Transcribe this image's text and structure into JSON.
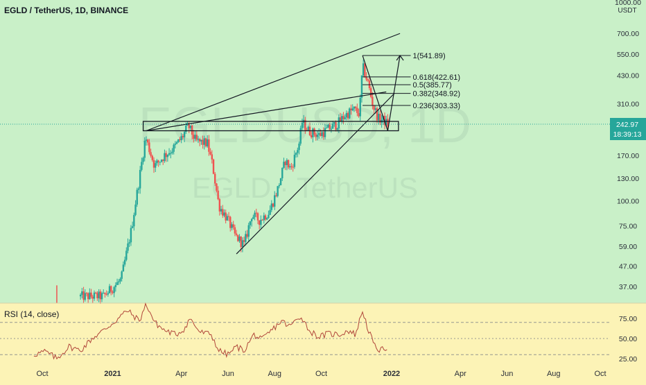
{
  "chart_data": {
    "type": "candlestick",
    "title": "EGLD / TetherUS, 1D, BINANCE",
    "watermark": {
      "symbol": "EGLDUSD, 1D",
      "pair": "EGLD · TetherUS"
    },
    "currency_label": "USDT",
    "price_axis": {
      "scale": "log",
      "range": [
        31,
        1000
      ],
      "ticks": [
        "1000.00",
        "700.00",
        "550.00",
        "430.00",
        "310.00",
        "240.00",
        "170.00",
        "130.00",
        "100.00",
        "75.00",
        "59.00",
        "47.00",
        "37.00"
      ],
      "tick_values": [
        1000,
        700,
        550,
        430,
        310,
        240,
        170,
        130,
        100,
        75,
        59,
        47,
        37
      ]
    },
    "last_price": {
      "value": 242.97,
      "label": "242.97",
      "countdown": "18:39:13",
      "color": "#26a69a"
    },
    "time_axis": {
      "labels": [
        "Oct",
        "2021",
        "Apr",
        "Jun",
        "Aug",
        "Oct",
        "2022",
        "Apr",
        "Jun",
        "Aug",
        "Oct"
      ],
      "positions": [
        "2020-10-01",
        "2021-01-01",
        "2021-04-01",
        "2021-06-01",
        "2021-08-01",
        "2021-10-01",
        "2022-01-01",
        "2022-04-01",
        "2022-06-01",
        "2022-08-01",
        "2022-10-01"
      ],
      "bold": [
        "2021",
        "2022"
      ]
    },
    "price_anchors": [
      [
        "2020-11-20",
        33
      ],
      [
        "2020-12-20",
        33
      ],
      [
        "2021-01-12",
        40
      ],
      [
        "2021-01-25",
        70
      ],
      [
        "2021-02-05",
        130
      ],
      [
        "2021-02-13",
        210
      ],
      [
        "2021-02-25",
        150
      ],
      [
        "2021-03-10",
        170
      ],
      [
        "2021-03-22",
        185
      ],
      [
        "2021-04-02",
        210
      ],
      [
        "2021-04-10",
        240
      ],
      [
        "2021-04-20",
        200
      ],
      [
        "2021-05-05",
        195
      ],
      [
        "2021-05-12",
        150
      ],
      [
        "2021-05-20",
        95
      ],
      [
        "2021-06-01",
        80
      ],
      [
        "2021-06-10",
        67
      ],
      [
        "2021-06-22",
        60
      ],
      [
        "2021-07-02",
        85
      ],
      [
        "2021-07-12",
        80
      ],
      [
        "2021-07-25",
        88
      ],
      [
        "2021-08-05",
        115
      ],
      [
        "2021-08-15",
        160
      ],
      [
        "2021-08-22",
        145
      ],
      [
        "2021-09-02",
        195
      ],
      [
        "2021-09-06",
        250
      ],
      [
        "2021-09-15",
        225
      ],
      [
        "2021-09-28",
        215
      ],
      [
        "2021-10-10",
        230
      ],
      [
        "2021-10-22",
        245
      ],
      [
        "2021-11-01",
        270
      ],
      [
        "2021-11-12",
        290
      ],
      [
        "2021-11-20",
        275
      ],
      [
        "2021-11-24",
        480
      ],
      [
        "2021-12-01",
        395
      ],
      [
        "2021-12-08",
        300
      ],
      [
        "2021-12-15",
        260
      ],
      [
        "2021-12-22",
        255
      ],
      [
        "2021-12-27",
        242.97
      ]
    ],
    "fibonacci": [
      {
        "label": "1(541.89)",
        "value": 541.89
      },
      {
        "label": "0.618(422.61)",
        "value": 422.61
      },
      {
        "label": "0.5(385.77)",
        "value": 385.77
      },
      {
        "label": "0.382(348.92)",
        "value": 348.92
      },
      {
        "label": "0.236(303.33)",
        "value": 303.33
      }
    ],
    "support_zone": {
      "low": 226,
      "high": 252
    },
    "rsi": {
      "label": "RSI (14, close)",
      "ticks": [
        "75.00",
        "50.00",
        "25.00"
      ],
      "tick_values": [
        75,
        50,
        25
      ],
      "levels": [
        70,
        50,
        30
      ],
      "range": [
        17,
        96
      ],
      "anchors": [
        [
          "2020-09-20",
          30
        ],
        [
          "2020-10-05",
          34
        ],
        [
          "2020-10-20",
          25
        ],
        [
          "2020-11-05",
          40
        ],
        [
          "2020-11-20",
          35
        ],
        [
          "2020-12-05",
          50
        ],
        [
          "2020-12-20",
          60
        ],
        [
          "2021-01-05",
          72
        ],
        [
          "2021-01-20",
          85
        ],
        [
          "2021-02-05",
          72
        ],
        [
          "2021-02-14",
          93
        ],
        [
          "2021-02-25",
          70
        ],
        [
          "2021-03-10",
          60
        ],
        [
          "2021-03-25",
          55
        ],
        [
          "2021-04-05",
          62
        ],
        [
          "2021-04-12",
          75
        ],
        [
          "2021-04-25",
          58
        ],
        [
          "2021-05-10",
          55
        ],
        [
          "2021-05-20",
          35
        ],
        [
          "2021-06-01",
          30
        ],
        [
          "2021-06-12",
          40
        ],
        [
          "2021-06-22",
          35
        ],
        [
          "2021-07-05",
          55
        ],
        [
          "2021-07-15",
          48
        ],
        [
          "2021-07-28",
          60
        ],
        [
          "2021-08-10",
          72
        ],
        [
          "2021-08-20",
          65
        ],
        [
          "2021-09-05",
          78
        ],
        [
          "2021-09-15",
          60
        ],
        [
          "2021-09-28",
          52
        ],
        [
          "2021-10-10",
          56
        ],
        [
          "2021-10-25",
          55
        ],
        [
          "2021-11-05",
          60
        ],
        [
          "2021-11-15",
          55
        ],
        [
          "2021-11-24",
          85
        ],
        [
          "2021-12-01",
          62
        ],
        [
          "2021-12-10",
          40
        ],
        [
          "2021-12-18",
          35
        ],
        [
          "2021-12-27",
          40
        ]
      ]
    },
    "colors": {
      "up": "#26a69a",
      "down": "#ef5350",
      "price_bg": "#c9f0c8",
      "rsi_bg": "#fcf3b6",
      "drawings": "#131722",
      "rsi_line": "#b0453a"
    }
  }
}
